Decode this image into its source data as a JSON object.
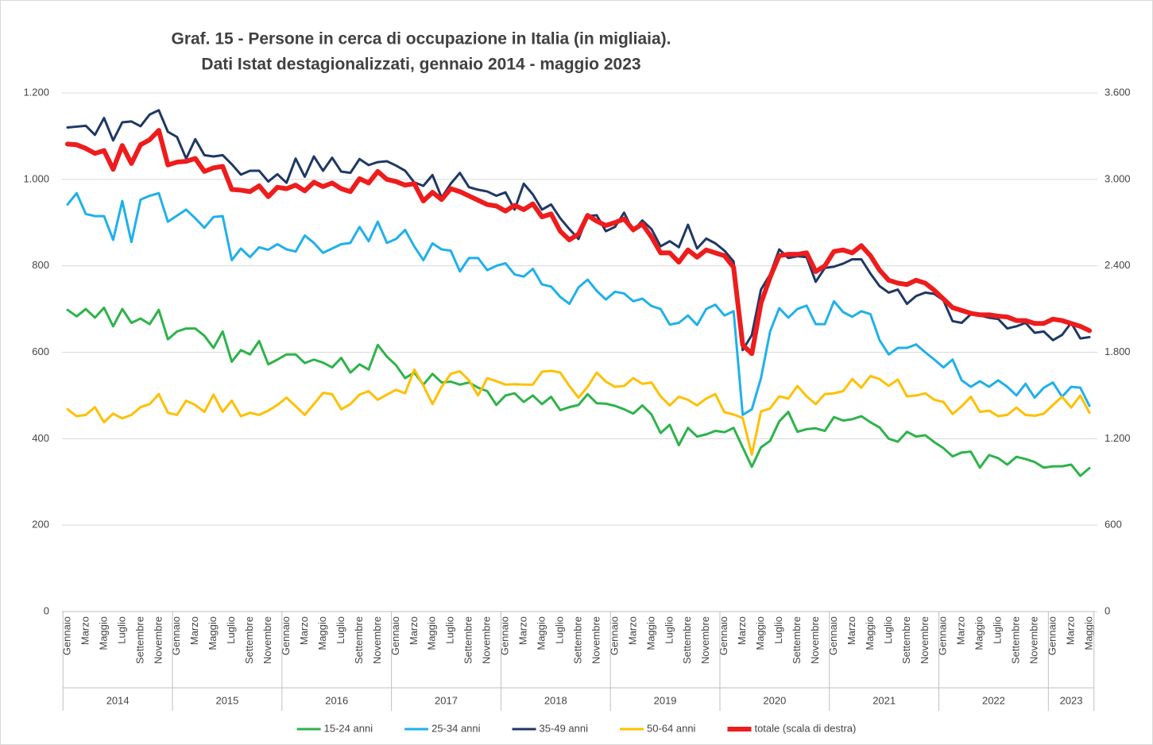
{
  "chart_data": {
    "type": "line",
    "title": "Graf. 15 - Persone in cerca di occupazione in Italia (in migliaia).",
    "subtitle": "Dati Istat destagionalizzati, gennaio 2014 - maggio 2023",
    "categories": [
      "Gennaio",
      null,
      "Marzo",
      null,
      "Maggio",
      null,
      "Luglio",
      null,
      "Settembre",
      null,
      "Novembre",
      null,
      "Gennaio",
      null,
      "Marzo",
      null,
      "Maggio",
      null,
      "Luglio",
      null,
      "Settembre",
      null,
      "Novembre",
      null,
      "Gennaio",
      null,
      "Marzo",
      null,
      "Maggio",
      null,
      "Luglio",
      null,
      "Settembre",
      null,
      "Novembre",
      null,
      "Gennaio",
      null,
      "Marzo",
      null,
      "Maggio",
      null,
      "Luglio",
      null,
      "Settembre",
      null,
      "Novembre",
      null,
      "Gennaio",
      null,
      "Marzo",
      null,
      "Maggio",
      null,
      "Luglio",
      null,
      "Settembre",
      null,
      "Novembre",
      null,
      "Gennaio",
      null,
      "Marzo",
      null,
      "Maggio",
      null,
      "Luglio",
      null,
      "Settembre",
      null,
      "Novembre",
      null,
      "Gennaio",
      null,
      "Marzo",
      null,
      "Maggio",
      null,
      "Luglio",
      null,
      "Settembre",
      null,
      "Novembre",
      null,
      "Gennaio",
      null,
      "Marzo",
      null,
      "Maggio",
      null,
      "Luglio",
      null,
      "Settembre",
      null,
      "Novembre",
      null,
      "Gennaio",
      null,
      "Marzo",
      null,
      "Maggio",
      null,
      "Luglio",
      null,
      "Settembre",
      null,
      "Novembre",
      null,
      "Gennaio",
      null,
      "Marzo",
      null,
      "Maggio"
    ],
    "years": [
      "2014",
      "2015",
      "2016",
      "2017",
      "2018",
      "2019",
      "2020",
      "2021",
      "2022",
      "2023"
    ],
    "ylim": [
      0,
      1200
    ],
    "yticks": [
      0,
      200,
      400,
      600,
      800,
      {
        "value": 1000,
        "label": "1.000"
      },
      {
        "value": 1200,
        "label": "1.200"
      }
    ],
    "y2lim": [
      0,
      3600
    ],
    "y2ticks": [
      0,
      600,
      {
        "value": 1200,
        "label": "1.200"
      },
      {
        "value": 1800,
        "label": "1.800"
      },
      {
        "value": 2400,
        "label": "2.400"
      },
      {
        "value": 3000,
        "label": "3.000"
      },
      {
        "value": 3600,
        "label": "3.600"
      }
    ],
    "grid": true,
    "legend": "bottom",
    "series": [
      {
        "name": "15-24 anni",
        "color": "#2db34a",
        "values": [
          698,
          683,
          700,
          680,
          703,
          660,
          700,
          668,
          678,
          665,
          698,
          630,
          648,
          655,
          655,
          638,
          610,
          648,
          578,
          605,
          595,
          626,
          572,
          583,
          595,
          595,
          575,
          583,
          576,
          565,
          587,
          553,
          572,
          560,
          617,
          590,
          570,
          540,
          553,
          525,
          550,
          530,
          532,
          525,
          530,
          518,
          510,
          478,
          500,
          505,
          485,
          500,
          480,
          497,
          466,
          473,
          478,
          503,
          482,
          481,
          476,
          468,
          458,
          477,
          456,
          413,
          432,
          385,
          425,
          405,
          410,
          418,
          415,
          425,
          380,
          335,
          380,
          395,
          440,
          462,
          416,
          422,
          424,
          418,
          450,
          442,
          445,
          452,
          438,
          426,
          400,
          393,
          416,
          405,
          408,
          392,
          378,
          359,
          368,
          370,
          333,
          362,
          355,
          340,
          358,
          353,
          346,
          333,
          336,
          336,
          340,
          314,
          332
        ]
      },
      {
        "name": "25-34 anni",
        "color": "#1fb0ec",
        "values": [
          942,
          968,
          920,
          915,
          915,
          860,
          950,
          855,
          953,
          962,
          968,
          902,
          916,
          930,
          910,
          888,
          913,
          915,
          813,
          840,
          820,
          843,
          837,
          850,
          838,
          833,
          870,
          853,
          830,
          840,
          850,
          853,
          890,
          857,
          902,
          853,
          862,
          883,
          845,
          813,
          852,
          838,
          835,
          787,
          818,
          818,
          790,
          800,
          806,
          780,
          775,
          793,
          757,
          752,
          728,
          712,
          750,
          768,
          742,
          722,
          740,
          736,
          718,
          724,
          707,
          700,
          664,
          668,
          685,
          663,
          700,
          710,
          685,
          695,
          455,
          468,
          540,
          648,
          702,
          680,
          700,
          708,
          665,
          665,
          718,
          693,
          682,
          695,
          688,
          628,
          595,
          610,
          610,
          618,
          600,
          583,
          565,
          583,
          535,
          520,
          533,
          520,
          535,
          520,
          500,
          527,
          495,
          518,
          530,
          497,
          520,
          518,
          476
        ]
      },
      {
        "name": "35-49 anni",
        "color": "#1f3864",
        "values": [
          1120,
          1122,
          1124,
          1103,
          1142,
          1090,
          1132,
          1134,
          1123,
          1150,
          1160,
          1110,
          1098,
          1048,
          1093,
          1056,
          1053,
          1056,
          1035,
          1011,
          1020,
          1020,
          995,
          1012,
          992,
          1048,
          1006,
          1053,
          1020,
          1050,
          1018,
          1015,
          1047,
          1033,
          1040,
          1042,
          1032,
          1020,
          993,
          985,
          1010,
          958,
          990,
          1015,
          982,
          976,
          972,
          962,
          970,
          930,
          990,
          965,
          930,
          942,
          910,
          885,
          862,
          915,
          917,
          880,
          890,
          923,
          880,
          905,
          885,
          845,
          857,
          843,
          895,
          840,
          863,
          852,
          835,
          810,
          605,
          640,
          745,
          780,
          838,
          818,
          822,
          820,
          763,
          795,
          798,
          805,
          815,
          815,
          782,
          753,
          738,
          745,
          712,
          730,
          738,
          735,
          720,
          672,
          668,
          688,
          685,
          680,
          677,
          655,
          660,
          668,
          645,
          648,
          628,
          640,
          668,
          632,
          635
        ]
      },
      {
        "name": "50-64 anni",
        "color": "#ffc000",
        "values": [
          468,
          452,
          455,
          473,
          438,
          458,
          447,
          455,
          473,
          480,
          503,
          460,
          455,
          488,
          478,
          462,
          502,
          462,
          488,
          452,
          460,
          455,
          465,
          478,
          495,
          475,
          455,
          480,
          506,
          503,
          468,
          480,
          502,
          510,
          490,
          502,
          513,
          505,
          560,
          523,
          480,
          520,
          550,
          556,
          535,
          500,
          540,
          533,
          525,
          526,
          525,
          525,
          555,
          557,
          553,
          522,
          495,
          520,
          553,
          532,
          520,
          522,
          540,
          527,
          530,
          498,
          477,
          497,
          490,
          477,
          493,
          503,
          461,
          456,
          448,
          363,
          463,
          470,
          498,
          493,
          522,
          498,
          480,
          503,
          505,
          510,
          538,
          518,
          545,
          538,
          522,
          537,
          498,
          500,
          505,
          490,
          485,
          457,
          475,
          497,
          462,
          465,
          452,
          455,
          472,
          455,
          453,
          458,
          478,
          497,
          472,
          500,
          460
        ]
      },
      {
        "name": "totale (scala di destra)",
        "color": "#ee1c1c",
        "axis": "y2",
        "values": [
          3245,
          3240,
          3215,
          3180,
          3200,
          3070,
          3235,
          3110,
          3240,
          3275,
          3340,
          3100,
          3120,
          3125,
          3145,
          3055,
          3080,
          3090,
          2930,
          2925,
          2915,
          2955,
          2880,
          2945,
          2935,
          2960,
          2920,
          2980,
          2950,
          2975,
          2935,
          2915,
          3005,
          2975,
          3055,
          3000,
          2985,
          2960,
          2970,
          2850,
          2910,
          2860,
          2935,
          2915,
          2885,
          2855,
          2825,
          2815,
          2780,
          2820,
          2790,
          2830,
          2740,
          2760,
          2640,
          2580,
          2620,
          2750,
          2710,
          2680,
          2700,
          2725,
          2650,
          2690,
          2600,
          2490,
          2490,
          2425,
          2510,
          2460,
          2510,
          2490,
          2470,
          2390,
          1850,
          1790,
          2140,
          2320,
          2470,
          2480,
          2480,
          2490,
          2360,
          2400,
          2500,
          2510,
          2490,
          2540,
          2470,
          2370,
          2300,
          2280,
          2270,
          2300,
          2280,
          2230,
          2170,
          2110,
          2090,
          2070,
          2060,
          2060,
          2050,
          2045,
          2020,
          2020,
          2000,
          2000,
          2030,
          2020,
          2000,
          1980,
          1950
        ]
      }
    ]
  }
}
